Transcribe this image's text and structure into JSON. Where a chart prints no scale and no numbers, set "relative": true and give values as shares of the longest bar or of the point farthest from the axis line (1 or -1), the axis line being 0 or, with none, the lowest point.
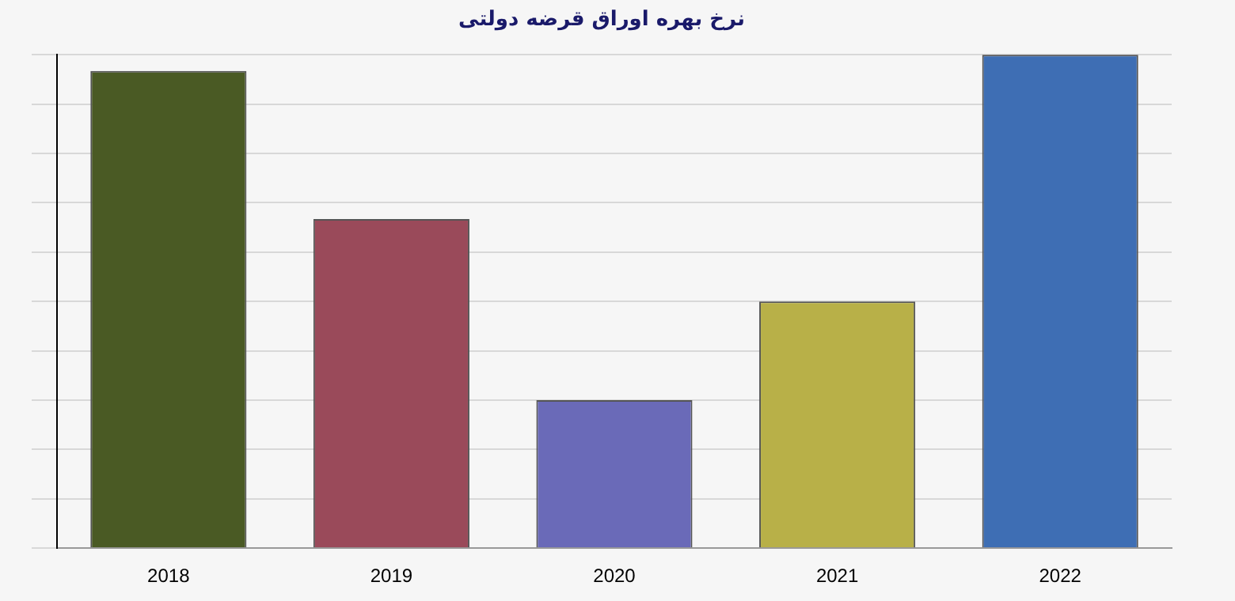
{
  "chart_data": {
    "type": "bar",
    "title": "نرخ بهره اوراق قرضه دولتی",
    "categories": [
      "2018",
      "2019",
      "2020",
      "2021",
      "2022"
    ],
    "values": [
      0.967,
      0.667,
      0.3,
      0.5,
      1
    ],
    "colors": [
      "#4a5a24",
      "#9a4a5a",
      "#6a6ab8",
      "#b8b048",
      "#3e6eb4"
    ],
    "relative": true,
    "grid": "y",
    "legend": false
  }
}
